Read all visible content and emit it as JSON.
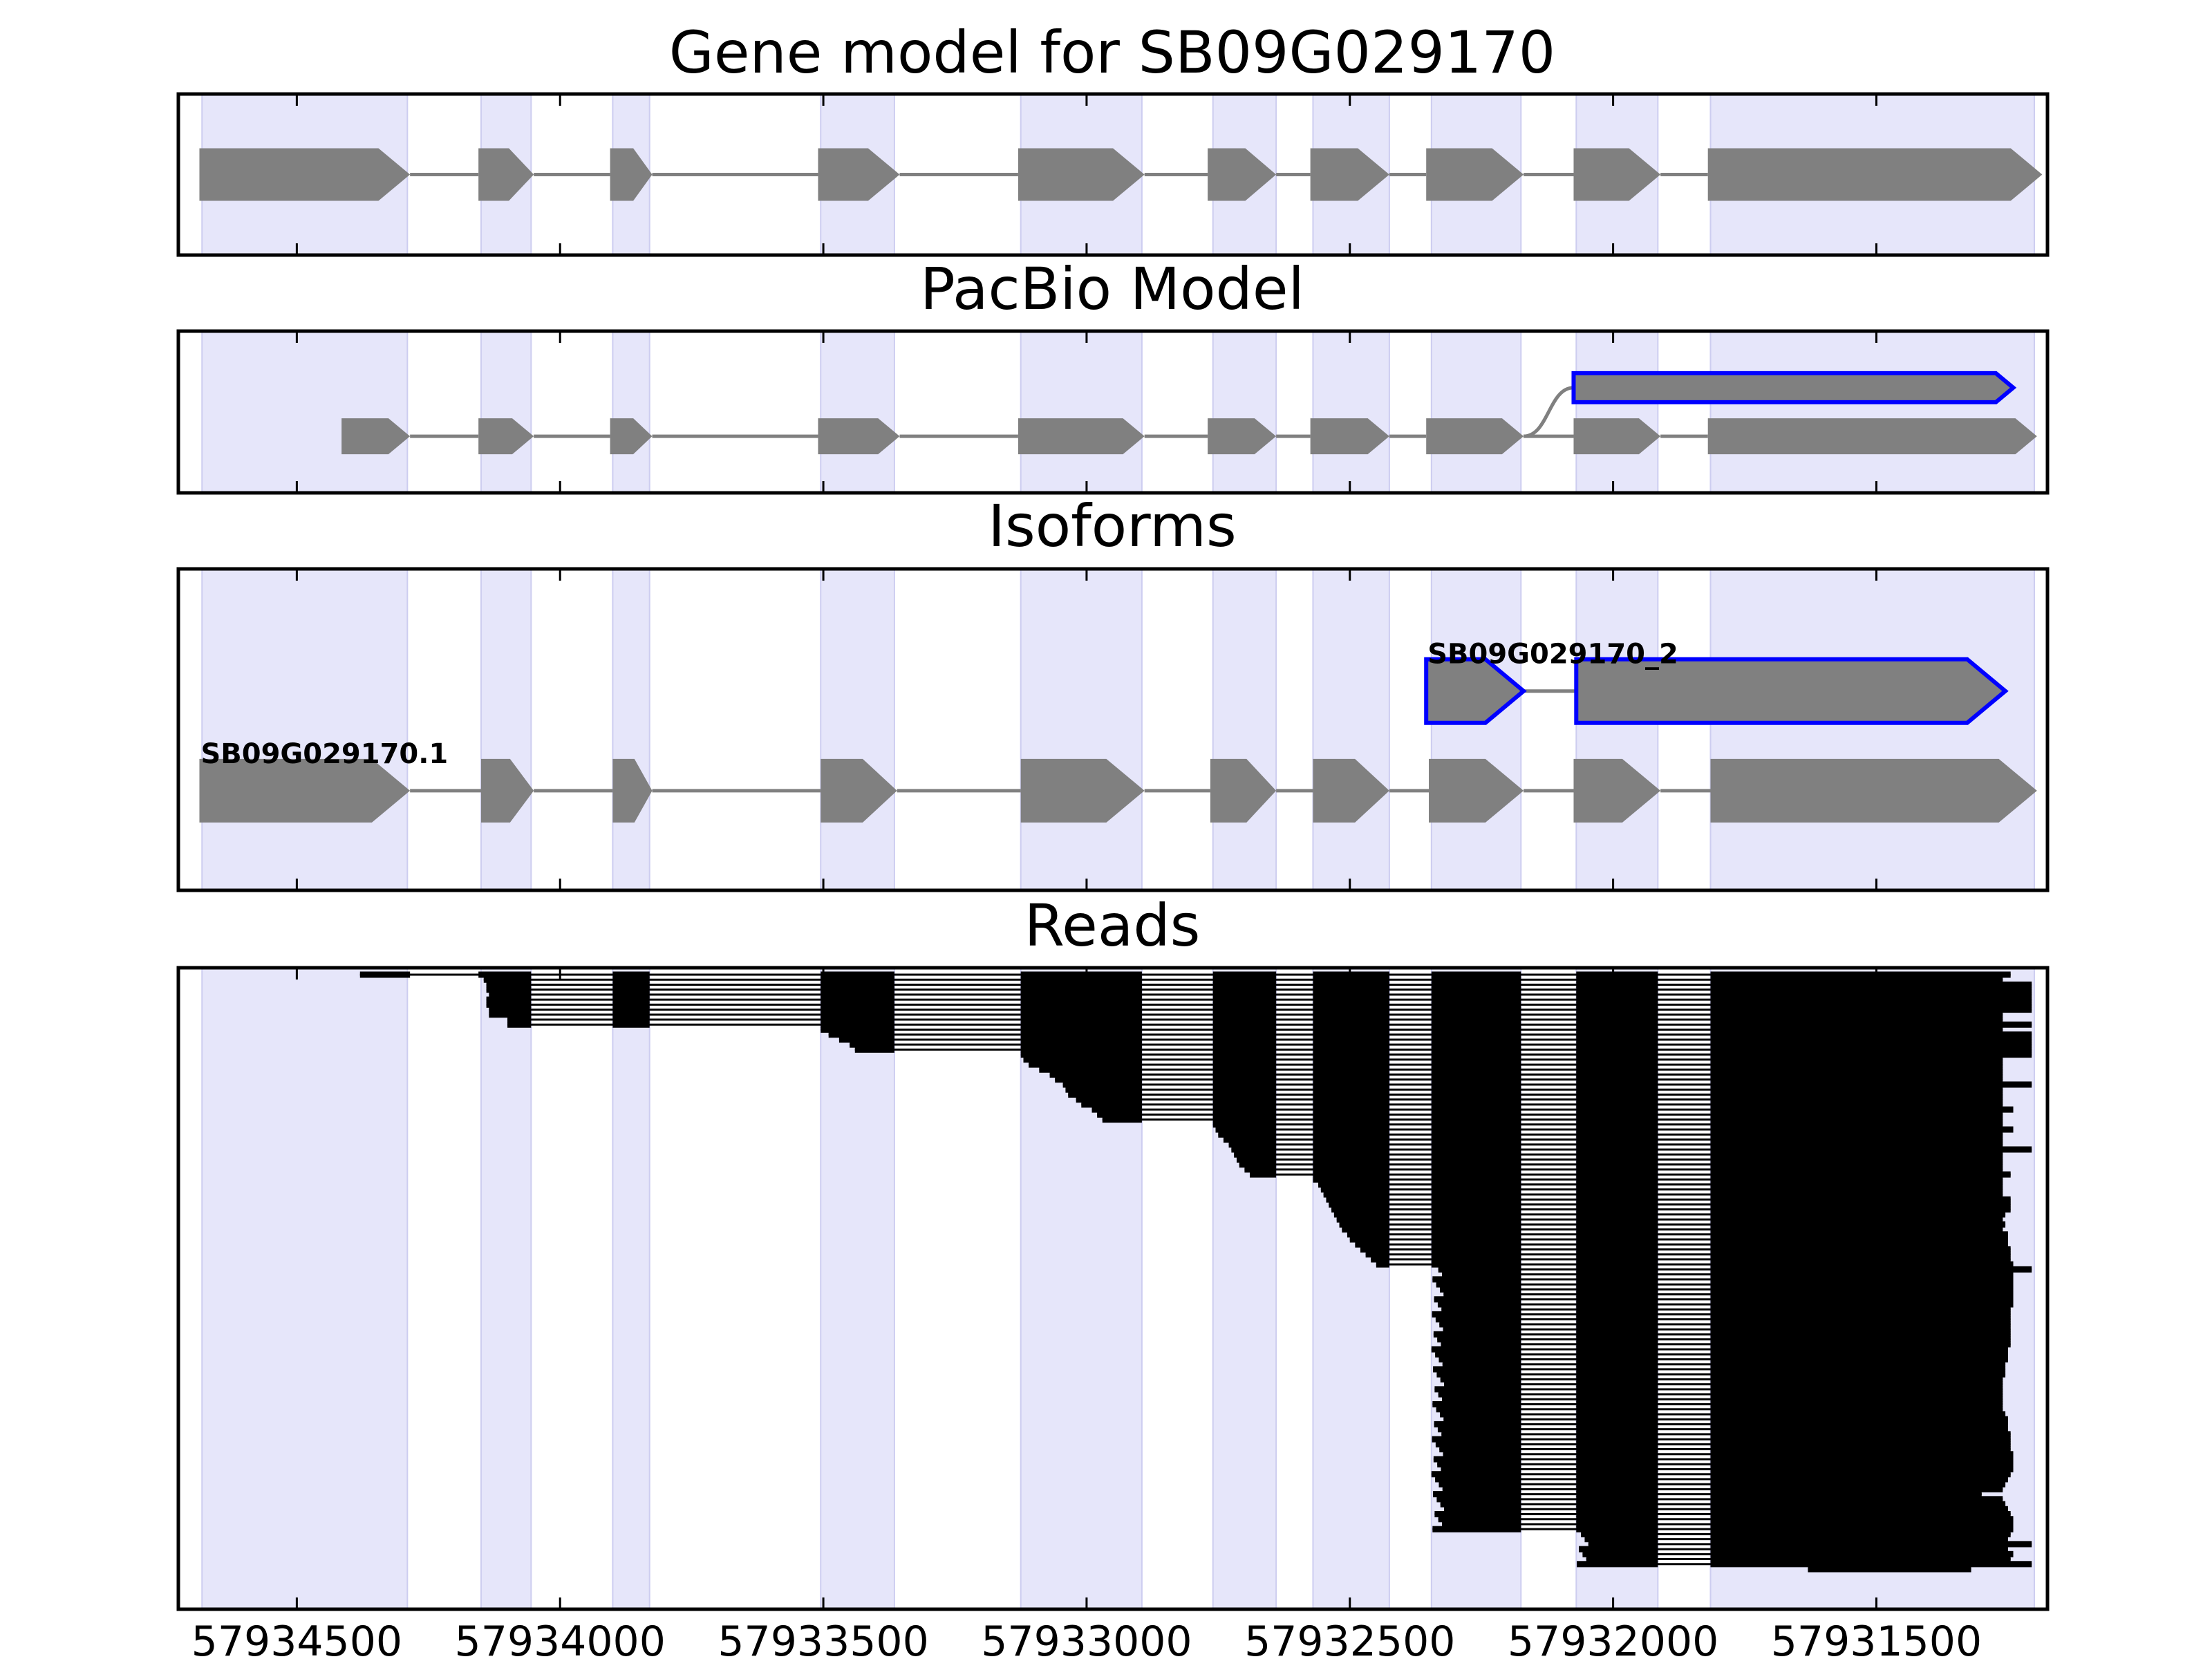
{
  "chart_data": {
    "type": "gene-track",
    "x_reversed": true,
    "xlim": [
      57934725,
      57931175
    ],
    "x_ticks": [
      {
        "value": 57934500,
        "label": "57934500"
      },
      {
        "value": 57934000,
        "label": "57934000"
      },
      {
        "value": 57933500,
        "label": "57933500"
      },
      {
        "value": 57933000,
        "label": "57933000"
      },
      {
        "value": 57932500,
        "label": "57932500"
      },
      {
        "value": 57932000,
        "label": "57932000"
      },
      {
        "value": 57931500,
        "label": "57931500"
      }
    ],
    "colors": {
      "exon_fill": "#808080",
      "highlight_outline": "#0000ff",
      "shade": "#e6e6fa",
      "intron": "#808080",
      "read": "#000000"
    },
    "shaded_regions": [
      [
        57934680,
        57934290
      ],
      [
        57934150,
        57934055
      ],
      [
        57933900,
        57933830
      ],
      [
        57933505,
        57933365
      ],
      [
        57933125,
        57932895
      ],
      [
        57932760,
        57932640
      ],
      [
        57932570,
        57932425
      ],
      [
        57932345,
        57932175
      ],
      [
        57932070,
        57931915
      ],
      [
        57931815,
        57931200
      ]
    ],
    "panels": [
      {
        "title": "Gene model for SB09G029170",
        "tracks": [
          {
            "lane": 0.5,
            "highlight": false,
            "exons": [
              [
                57934685,
                57934285
              ],
              [
                57934155,
                57934050
              ],
              [
                57933905,
                57933825
              ],
              [
                57933510,
                57933355
              ],
              [
                57933130,
                57932890
              ],
              [
                57932770,
                57932640
              ],
              [
                57932575,
                57932425
              ],
              [
                57932355,
                57932170
              ],
              [
                57932075,
                57931910
              ],
              [
                57931820,
                57931185
              ]
            ]
          }
        ]
      },
      {
        "title": "PacBio Model",
        "tracks": [
          {
            "lane": 0.35,
            "highlight": true,
            "exons": [
              [
                57932075,
                57931240
              ]
            ],
            "connect_from": [
              57932170,
              0.65
            ]
          },
          {
            "lane": 0.65,
            "highlight": false,
            "exons": [
              [
                57934415,
                57934285
              ],
              [
                57934155,
                57934050
              ],
              [
                57933905,
                57933825
              ],
              [
                57933510,
                57933355
              ],
              [
                57933130,
                57932890
              ],
              [
                57932770,
                57932640
              ],
              [
                57932575,
                57932425
              ],
              [
                57932355,
                57932170
              ],
              [
                57932075,
                57931910
              ],
              [
                57931820,
                57931195
              ]
            ]
          }
        ]
      },
      {
        "title": "Isoforms",
        "tracks": [
          {
            "lane": 0.38,
            "highlight": true,
            "label": "SB09G029170_2",
            "exons": [
              [
                57932355,
                57932170
              ],
              [
                57932070,
                57931255
              ]
            ]
          },
          {
            "lane": 0.69,
            "highlight": false,
            "label": "SB09G029170.1",
            "exons": [
              [
                57934685,
                57934285
              ],
              [
                57934150,
                57934050
              ],
              [
                57933900,
                57933825
              ],
              [
                57933505,
                57933360
              ],
              [
                57933125,
                57932890
              ],
              [
                57932765,
                57932640
              ],
              [
                57932570,
                57932425
              ],
              [
                57932350,
                57932170
              ],
              [
                57932075,
                57931910
              ],
              [
                57931815,
                57931195
              ]
            ]
          }
        ]
      },
      {
        "title": "Reads",
        "read_count": 120,
        "read_exon_bounds": [
          [
            57934155,
            57934055
          ],
          [
            57933900,
            57933830
          ],
          [
            57933505,
            57933365
          ],
          [
            57933125,
            57932895
          ],
          [
            57932760,
            57932640
          ],
          [
            57932570,
            57932425
          ],
          [
            57932345,
            57932175
          ],
          [
            57932070,
            57931915
          ],
          [
            57931815,
            57931200
          ]
        ],
        "read_groups": [
          {
            "rows": [
              0,
              0
            ],
            "start_from": 57934380,
            "first_exon_start": 57934380
          },
          {
            "rows": [
              1,
              10
            ],
            "start_first_exon": 0,
            "start_values": [
              57934145,
              57934140,
              57934140,
              57934135,
              57934140,
              57934140,
              57934135,
              57934135,
              57934100,
              57934100
            ],
            "start_extra_row": 57934100
          },
          {
            "rows": [
              11,
              15
            ],
            "start_first_exon": 2,
            "start_values": [
              57933505,
              57933490,
              57933470,
              57933450,
              57933440
            ]
          },
          {
            "rows": [
              16,
              29
            ],
            "start_first_exon": 3,
            "start_values": [
              57933125,
              57933120,
              57933110,
              57933090,
              57933070,
              57933060,
              57933045,
              57933040,
              57933035,
              57933020,
              57933010,
              57932990,
              57932980,
              57932970
            ]
          },
          {
            "rows": [
              30,
              40
            ],
            "start_first_exon": 4,
            "start_values": [
              57932760,
              57932755,
              57932750,
              57932740,
              57932730,
              57932725,
              57932720,
              57932715,
              57932710,
              57932700,
              57932690
            ]
          },
          {
            "rows": [
              41,
              58
            ],
            "start_first_exon": 5,
            "start_values": [
              57932570,
              57932560,
              57932555,
              57932550,
              57932545,
              57932540,
              57932535,
              57932530,
              57932525,
              57932520,
              57932515,
              57932505,
              57932500,
              57932490,
              57932480,
              57932470,
              57932460,
              57932450
            ]
          },
          {
            "rows": [
              59,
              111
            ],
            "start_first_exon": 6
          },
          {
            "rows": [
              112,
              118
            ],
            "start_first_exon": 7
          },
          {
            "rows": [
              119,
              119
            ],
            "start_first_exon": 8,
            "start_values": [
              57931630
            ]
          }
        ],
        "read_end_values": [
          57931245,
          57931260,
          57931205,
          57931205,
          57931205,
          57931205,
          57931205,
          57931205,
          57931260,
          57931260,
          57931205,
          57931260,
          57931205,
          57931205,
          57931205,
          57931205,
          57931205,
          57931260,
          57931260,
          57931260,
          57931260,
          57931260,
          57931205,
          57931260,
          57931260,
          57931260,
          57931260,
          57931240,
          57931260,
          57931260,
          57931260,
          57931240,
          57931260,
          57931260,
          57931260,
          57931205,
          57931260,
          57931260,
          57931260,
          57931260,
          57931245,
          57931260,
          57931260,
          57931260,
          57931260,
          57931245,
          57931245,
          57931245,
          57931255,
          57931260,
          57931255,
          57931260,
          57931250,
          57931250,
          57931250,
          57931245,
          57931245,
          57931245,
          57931240,
          57931205,
          57931240,
          57931240,
          57931240,
          57931240,
          57931240,
          57931240,
          57931240,
          57931245,
          57931245,
          57931245,
          57931245,
          57931245,
          57931245,
          57931245,
          57931245,
          57931250,
          57931250,
          57931250,
          57931255,
          57931255,
          57931255,
          57931260,
          57931260,
          57931260,
          57931260,
          57931260,
          57931260,
          57931260,
          57931255,
          57931250,
          57931250,
          57931250,
          57931245,
          57931245,
          57931245,
          57931245,
          57931240,
          57931240,
          57931240,
          57931240,
          57931245,
          57931250,
          57931255,
          57931260,
          57931300,
          57931260,
          57931255,
          57931250,
          57931245,
          57931240,
          57931240,
          57931240,
          57931245,
          57931250,
          57931205,
          57931250,
          57931240,
          57931245,
          57931205,
          57931320
        ]
      }
    ]
  }
}
